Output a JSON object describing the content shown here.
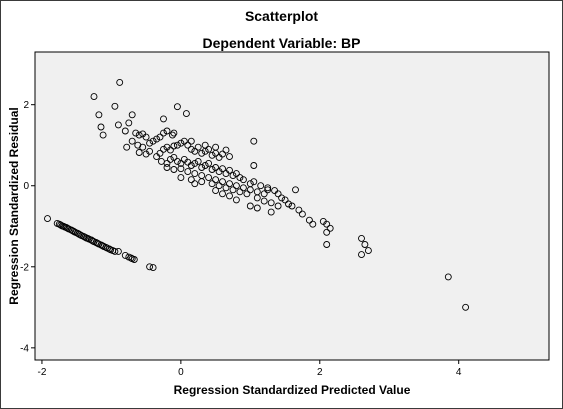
{
  "chart_data": {
    "type": "scatter",
    "title": "Scatterplot",
    "subtitle": "Dependent Variable: BP",
    "xlabel": "Regression Standardized Predicted Value",
    "ylabel": "Regression Standardized Residual",
    "xlim": [
      -2.1,
      5.3
    ],
    "ylim": [
      -4.3,
      3.3
    ],
    "xticks": [
      -2,
      0,
      2,
      4
    ],
    "yticks": [
      -4,
      -2,
      0,
      2
    ],
    "grid": false,
    "legend": "none",
    "colors": {
      "plot_background": "#f0f0f0",
      "marker_edge": "#000000"
    },
    "points": [
      [
        -1.92,
        -0.81
      ],
      [
        -1.78,
        -0.93
      ],
      [
        -1.75,
        -0.95
      ],
      [
        -1.73,
        -0.97
      ],
      [
        -1.71,
        -0.99
      ],
      [
        -1.69,
        -1.0
      ],
      [
        -1.67,
        -1.02
      ],
      [
        -1.65,
        -1.03
      ],
      [
        -1.63,
        -1.05
      ],
      [
        -1.61,
        -1.07
      ],
      [
        -1.58,
        -1.09
      ],
      [
        -1.56,
        -1.11
      ],
      [
        -1.54,
        -1.13
      ],
      [
        -1.52,
        -1.15
      ],
      [
        -1.49,
        -1.17
      ],
      [
        -1.47,
        -1.19
      ],
      [
        -1.45,
        -1.21
      ],
      [
        -1.43,
        -1.23
      ],
      [
        -1.4,
        -1.25
      ],
      [
        -1.38,
        -1.27
      ],
      [
        -1.36,
        -1.29
      ],
      [
        -1.34,
        -1.3
      ],
      [
        -1.32,
        -1.32
      ],
      [
        -1.29,
        -1.34
      ],
      [
        -1.27,
        -1.36
      ],
      [
        -1.25,
        -1.38
      ],
      [
        -1.22,
        -1.4
      ],
      [
        -1.2,
        -1.42
      ],
      [
        -1.18,
        -1.44
      ],
      [
        -1.15,
        -1.46
      ],
      [
        -1.13,
        -1.48
      ],
      [
        -1.11,
        -1.5
      ],
      [
        -1.08,
        -1.52
      ],
      [
        -1.06,
        -1.54
      ],
      [
        -1.03,
        -1.56
      ],
      [
        -1.01,
        -1.58
      ],
      [
        -0.98,
        -1.6
      ],
      [
        -0.95,
        -1.62
      ],
      [
        -0.9,
        -1.62
      ],
      [
        -0.8,
        -1.72
      ],
      [
        -0.75,
        -1.76
      ],
      [
        -0.72,
        -1.78
      ],
      [
        -0.7,
        -1.8
      ],
      [
        -0.67,
        -1.82
      ],
      [
        -0.45,
        -2.0
      ],
      [
        -0.4,
        -2.02
      ],
      [
        -0.88,
        2.55
      ],
      [
        -1.25,
        2.2
      ],
      [
        -0.95,
        1.96
      ],
      [
        -1.18,
        1.75
      ],
      [
        -0.7,
        1.75
      ],
      [
        -1.15,
        1.45
      ],
      [
        -0.9,
        1.5
      ],
      [
        -1.12,
        1.25
      ],
      [
        -0.75,
        1.55
      ],
      [
        -0.8,
        1.35
      ],
      [
        -0.65,
        1.3
      ],
      [
        -0.6,
        1.25
      ],
      [
        -0.55,
        1.28
      ],
      [
        -0.5,
        1.2
      ],
      [
        -0.7,
        1.1
      ],
      [
        -0.78,
        0.95
      ],
      [
        -0.62,
        1.0
      ],
      [
        -0.55,
        0.95
      ],
      [
        -0.45,
        1.05
      ],
      [
        -0.4,
        1.1
      ],
      [
        -0.35,
        1.15
      ],
      [
        -0.3,
        1.2
      ],
      [
        -0.25,
        1.3
      ],
      [
        -0.2,
        1.35
      ],
      [
        -0.12,
        1.25
      ],
      [
        -0.05,
        1.95
      ],
      [
        -0.25,
        1.65
      ],
      [
        0.08,
        1.78
      ],
      [
        -0.6,
        0.82
      ],
      [
        -0.5,
        0.78
      ],
      [
        -0.45,
        0.85
      ],
      [
        -0.35,
        0.72
      ],
      [
        -0.3,
        0.8
      ],
      [
        -0.25,
        0.9
      ],
      [
        -0.2,
        0.95
      ],
      [
        -0.15,
        0.88
      ],
      [
        -0.1,
        0.98
      ],
      [
        -0.05,
        1.0
      ],
      [
        0.0,
        1.05
      ],
      [
        0.05,
        1.1
      ],
      [
        0.1,
        1.0
      ],
      [
        0.15,
        0.9
      ],
      [
        0.2,
        0.85
      ],
      [
        0.25,
        0.95
      ],
      [
        0.3,
        0.8
      ],
      [
        0.35,
        0.85
      ],
      [
        0.4,
        0.9
      ],
      [
        0.45,
        0.75
      ],
      [
        0.5,
        0.8
      ],
      [
        0.55,
        0.7
      ],
      [
        0.6,
        0.78
      ],
      [
        0.65,
        0.88
      ],
      [
        0.7,
        0.72
      ],
      [
        -0.28,
        0.6
      ],
      [
        -0.2,
        0.55
      ],
      [
        -0.15,
        0.65
      ],
      [
        -0.1,
        0.7
      ],
      [
        -0.05,
        0.6
      ],
      [
        0.0,
        0.55
      ],
      [
        0.05,
        0.65
      ],
      [
        0.1,
        0.58
      ],
      [
        0.15,
        0.5
      ],
      [
        0.2,
        0.55
      ],
      [
        0.25,
        0.6
      ],
      [
        0.3,
        0.45
      ],
      [
        0.35,
        0.5
      ],
      [
        0.4,
        0.55
      ],
      [
        0.45,
        0.4
      ],
      [
        0.5,
        0.45
      ],
      [
        0.55,
        0.35
      ],
      [
        0.6,
        0.42
      ],
      [
        0.65,
        0.3
      ],
      [
        0.7,
        0.38
      ],
      [
        0.75,
        0.25
      ],
      [
        0.8,
        0.3
      ],
      [
        0.85,
        0.2
      ],
      [
        0.9,
        0.15
      ],
      [
        -0.2,
        0.45
      ],
      [
        -0.1,
        0.4
      ],
      [
        0.0,
        0.42
      ],
      [
        0.1,
        0.35
      ],
      [
        0.2,
        0.3
      ],
      [
        0.3,
        0.25
      ],
      [
        0.4,
        0.2
      ],
      [
        0.5,
        0.15
      ],
      [
        0.6,
        0.1
      ],
      [
        0.7,
        0.05
      ],
      [
        0.8,
        0.0
      ],
      [
        0.9,
        -0.05
      ],
      [
        1.0,
        -0.1
      ],
      [
        1.1,
        -0.15
      ],
      [
        1.2,
        -0.2
      ],
      [
        0.0,
        0.2
      ],
      [
        0.15,
        0.15
      ],
      [
        0.3,
        0.1
      ],
      [
        0.45,
        0.05
      ],
      [
        0.55,
        0.0
      ],
      [
        0.65,
        -0.05
      ],
      [
        0.75,
        -0.1
      ],
      [
        0.85,
        -0.15
      ],
      [
        0.95,
        -0.2
      ],
      [
        0.5,
        -0.12
      ],
      [
        0.6,
        -0.2
      ],
      [
        0.7,
        -0.25
      ],
      [
        1.0,
        0.05
      ],
      [
        1.05,
        0.1
      ],
      [
        1.15,
        0.0
      ],
      [
        1.25,
        -0.05
      ],
      [
        1.35,
        -0.12
      ],
      [
        1.4,
        -0.2
      ],
      [
        1.45,
        -0.3
      ],
      [
        1.5,
        -0.35
      ],
      [
        1.1,
        -0.3
      ],
      [
        1.2,
        -0.38
      ],
      [
        1.3,
        -0.42
      ],
      [
        1.4,
        -0.5
      ],
      [
        1.55,
        -0.45
      ],
      [
        1.6,
        -0.5
      ],
      [
        1.7,
        -0.6
      ],
      [
        1.75,
        -0.7
      ],
      [
        1.65,
        -0.1
      ],
      [
        1.85,
        -0.85
      ],
      [
        1.9,
        -0.95
      ],
      [
        2.05,
        -0.88
      ],
      [
        2.1,
        -0.95
      ],
      [
        2.15,
        -1.05
      ],
      [
        2.1,
        -1.15
      ],
      [
        2.1,
        -1.45
      ],
      [
        1.05,
        1.1
      ],
      [
        1.05,
        0.5
      ],
      [
        0.5,
        0.95
      ],
      [
        0.35,
        1.0
      ],
      [
        0.15,
        1.1
      ],
      [
        -0.1,
        1.3
      ],
      [
        2.6,
        -1.3
      ],
      [
        2.65,
        -1.45
      ],
      [
        2.7,
        -1.6
      ],
      [
        2.6,
        -1.7
      ],
      [
        3.85,
        -2.25
      ],
      [
        4.1,
        -3.0
      ],
      [
        1.25,
        -0.1
      ],
      [
        1.0,
        -0.5
      ],
      [
        1.1,
        -0.55
      ],
      [
        1.3,
        -0.65
      ],
      [
        0.8,
        -0.35
      ],
      [
        0.2,
        0.05
      ]
    ]
  }
}
